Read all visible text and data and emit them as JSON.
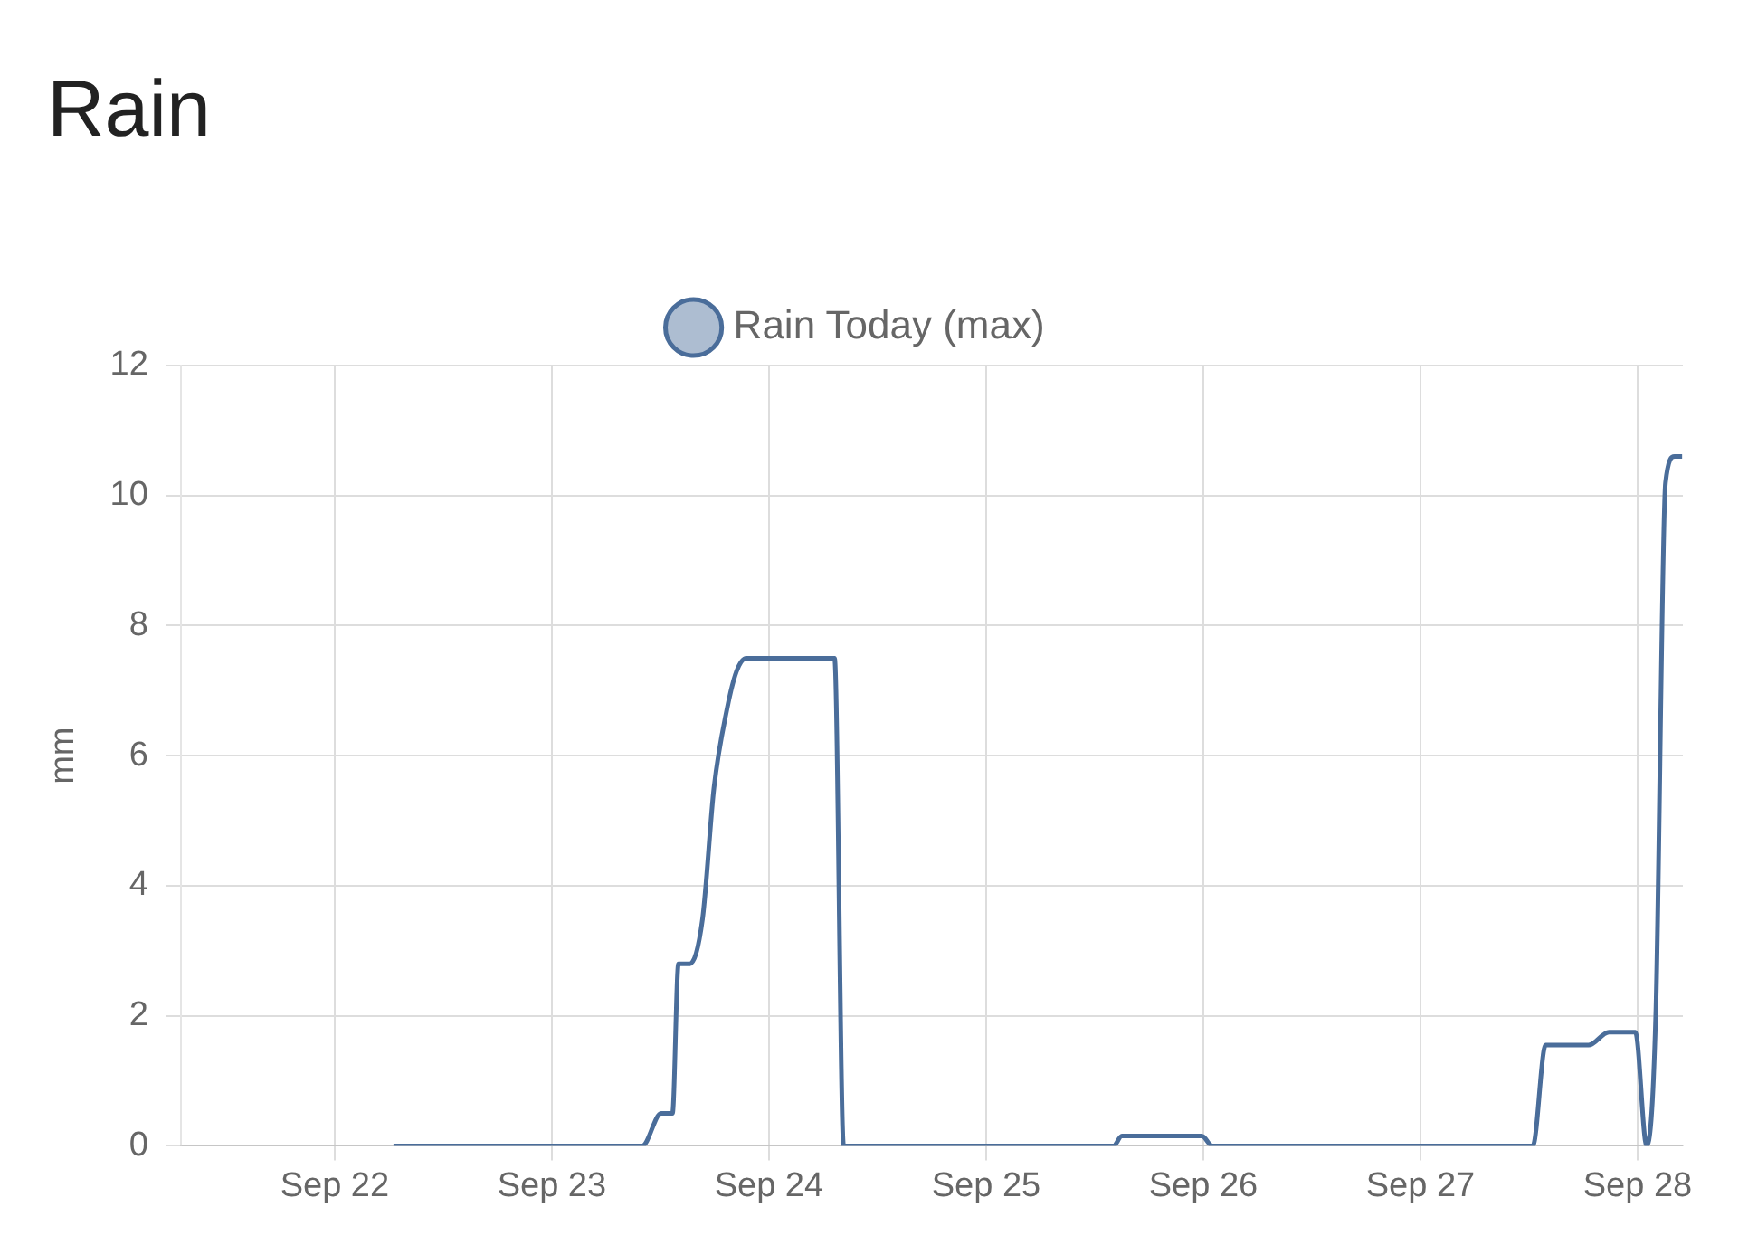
{
  "chart_data": {
    "type": "line",
    "title": "Rain",
    "ylabel": "mm",
    "x": [
      "--09-22T06:30",
      "--09-23T10:00",
      "--09-23T12:05",
      "--09-23T13:20",
      "--09-23T14:00",
      "--09-23T15:15",
      "--09-23T16:40",
      "--09-23T17:55",
      "--09-23T19:20",
      "--09-23T20:25",
      "--09-23T21:30",
      "--09-24T07:15",
      "--09-24T08:15",
      "--09-25T14:05",
      "--09-25T15:00",
      "--09-25T23:50",
      "--09-26T01:00",
      "--09-27T12:25",
      "--09-27T13:50",
      "--09-27T18:35",
      "--09-27T20:50",
      "--09-27T23:45",
      "--09-28T01:00",
      "--09-28T02:00",
      "--09-28T03:05",
      "--09-28T04:05",
      "--09-28T04:55"
    ],
    "series": [
      {
        "name": "Rain Today (max)",
        "color": "#4a6d9a",
        "values": [
          0,
          0,
          0.5,
          0.5,
          2.8,
          2.8,
          3.5,
          5.5,
          6.7,
          7.3,
          7.5,
          7.5,
          0,
          0,
          0.15,
          0.15,
          0,
          0,
          1.55,
          1.55,
          1.75,
          1.75,
          0,
          2,
          10.2,
          10.6,
          10.6
        ]
      }
    ],
    "xlim": [
      "--09-21T07:00",
      "--09-28T05:00"
    ],
    "xticks": [
      {
        "value": "--09-22",
        "label": "Sep 22"
      },
      {
        "value": "--09-23",
        "label": "Sep 23"
      },
      {
        "value": "--09-24",
        "label": "Sep 24"
      },
      {
        "value": "--09-25",
        "label": "Sep 25"
      },
      {
        "value": "--09-26",
        "label": "Sep 26"
      },
      {
        "value": "--09-27",
        "label": "Sep 27"
      },
      {
        "value": "--09-28",
        "label": "Sep 28"
      }
    ],
    "ylim": [
      0,
      12
    ],
    "yticks": [
      0,
      2,
      4,
      6,
      8,
      10,
      12
    ],
    "grid": true,
    "legend": "top",
    "marker": "none",
    "line_style": "solid"
  }
}
